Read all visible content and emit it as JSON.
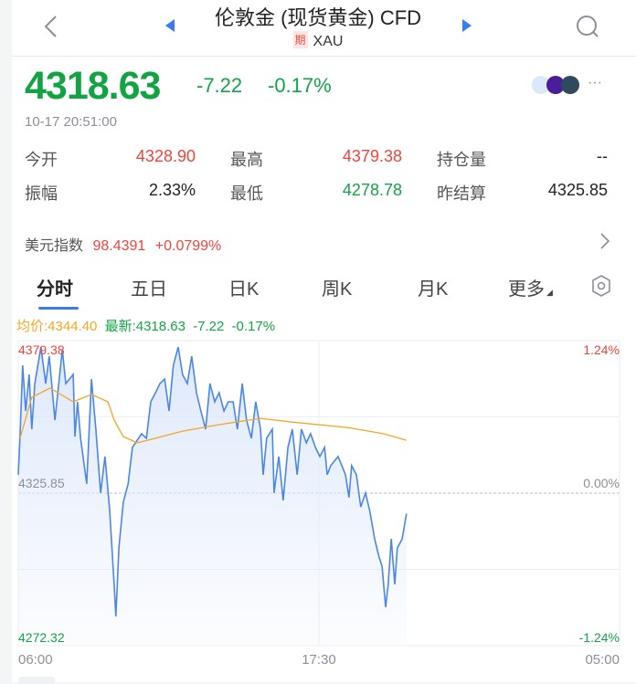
{
  "header": {
    "title": "伦敦金 (现货黄金) CFD",
    "badge": "期",
    "symbol": "XAU",
    "icons": [
      "chevron-left-icon",
      "triangle-left-icon",
      "triangle-right-icon",
      "search-icon"
    ]
  },
  "quote": {
    "price": "4318.63",
    "change": "-7.22",
    "change_pct": "-0.17%",
    "timestamp": "10-17 20:51:00",
    "more": "···"
  },
  "stats": [
    {
      "label": "今开",
      "value": "4328.90",
      "color": "red"
    },
    {
      "label": "最高",
      "value": "4379.38",
      "color": "red"
    },
    {
      "label": "持仓量",
      "value": "--",
      "color": "dark"
    },
    {
      "label": "振幅",
      "value": "2.33%",
      "color": "dark"
    },
    {
      "label": "最低",
      "value": "4278.78",
      "color": "green"
    },
    {
      "label": "昨结算",
      "value": "4325.85",
      "color": "dark"
    }
  ],
  "usd_index": {
    "label": "美元指数",
    "value": "98.4391",
    "change": "+0.0799%"
  },
  "tabs": [
    {
      "label": "分时",
      "active": true
    },
    {
      "label": "五日"
    },
    {
      "label": "日K"
    },
    {
      "label": "周K"
    },
    {
      "label": "月K"
    },
    {
      "label": "更多"
    }
  ],
  "legend": {
    "avg": "均价:4344.40",
    "latest": "最新:4318.63",
    "change": "-7.22",
    "change_pct": "-0.17%"
  },
  "colors": {
    "up": "#f0443a",
    "down": "#12a444",
    "price_line": "#4a86e8",
    "avg_line": "#f5a623",
    "accent": "#3a7bf0"
  },
  "chart_data": {
    "type": "line",
    "y_left_labels": {
      "top": "4379.38",
      "mid": "4325.85",
      "bottom": "4272.32"
    },
    "y_right_labels": {
      "top": "1.24%",
      "mid": "0.00%",
      "bottom": "-1.24%"
    },
    "x_tick_labels": [
      "06:00",
      "17:30",
      "05:00"
    ],
    "ylim": [
      4272.32,
      4379.38
    ],
    "xlim": [
      "06:00",
      "05:00"
    ],
    "reference": 4325.85,
    "series": [
      {
        "key": "price",
        "points": [
          [
            "06:00",
            4332.3
          ],
          [
            "06:04",
            4345.7
          ],
          [
            "06:10",
            4370.7
          ],
          [
            "06:17",
            4354.7
          ],
          [
            "06:25",
            4367.5
          ],
          [
            "06:31",
            4348.3
          ],
          [
            "06:38",
            4364.3
          ],
          [
            "06:52",
            4377.1
          ],
          [
            "07:03",
            4364.3
          ],
          [
            "07:11",
            4373.9
          ],
          [
            "07:24",
            4351.5
          ],
          [
            "07:41",
            4376.2
          ],
          [
            "07:49",
            4364.3
          ],
          [
            "08:06",
            4367.5
          ],
          [
            "08:10",
            4345.7
          ],
          [
            "08:16",
            4357.9
          ],
          [
            "08:23",
            4345.1
          ],
          [
            "08:37",
            4329.1
          ],
          [
            "08:48",
            4365.9
          ],
          [
            "08:58",
            4348.3
          ],
          [
            "09:09",
            4325.9
          ],
          [
            "09:19",
            4338.7
          ],
          [
            "09:30",
            4319.4
          ],
          [
            "09:40",
            4293.8
          ],
          [
            "09:44",
            4282.6
          ],
          [
            "09:51",
            4306.6
          ],
          [
            "10:01",
            4322.6
          ],
          [
            "10:12",
            4329.1
          ],
          [
            "10:22",
            4341.9
          ],
          [
            "10:43",
            4346.7
          ],
          [
            "10:54",
            4345.1
          ],
          [
            "11:04",
            4357.9
          ],
          [
            "11:15",
            4361.1
          ],
          [
            "11:25",
            4364.3
          ],
          [
            "11:36",
            4365.9
          ],
          [
            "11:46",
            4354.7
          ],
          [
            "11:56",
            4370.7
          ],
          [
            "12:07",
            4377.1
          ],
          [
            "12:17",
            4367.5
          ],
          [
            "12:28",
            4364.3
          ],
          [
            "12:38",
            4373.9
          ],
          [
            "12:49",
            4361.1
          ],
          [
            "12:59",
            4354.7
          ],
          [
            "13:10",
            4348.3
          ],
          [
            "13:20",
            4364.3
          ],
          [
            "13:31",
            4357.9
          ],
          [
            "13:41",
            4361.1
          ],
          [
            "13:52",
            4354.7
          ],
          [
            "14:02",
            4357.9
          ],
          [
            "14:13",
            4357.9
          ],
          [
            "14:23",
            4348.3
          ],
          [
            "14:34",
            4364.3
          ],
          [
            "14:44",
            4351.5
          ],
          [
            "14:55",
            4345.1
          ],
          [
            "15:05",
            4357.9
          ],
          [
            "15:16",
            4348.3
          ],
          [
            "15:22",
            4332.3
          ],
          [
            "15:30",
            4345.1
          ],
          [
            "15:43",
            4348.3
          ],
          [
            "15:47",
            4325.9
          ],
          [
            "15:58",
            4338.7
          ],
          [
            "16:08",
            4323.3
          ],
          [
            "16:19",
            4341.9
          ],
          [
            "16:29",
            4348.3
          ],
          [
            "16:40",
            4332.3
          ],
          [
            "16:50",
            4348.3
          ],
          [
            "17:01",
            4343.5
          ],
          [
            "17:11",
            4346.7
          ],
          [
            "17:22",
            4341.9
          ],
          [
            "17:32",
            4338.7
          ],
          [
            "17:43",
            4341.9
          ],
          [
            "17:49",
            4332.3
          ],
          [
            "17:57",
            4335.5
          ],
          [
            "18:14",
            4338.7
          ],
          [
            "18:31",
            4332.3
          ],
          [
            "18:39",
            4324.3
          ],
          [
            "18:45",
            4335.5
          ],
          [
            "18:56",
            4332.3
          ],
          [
            "19:06",
            4321.0
          ],
          [
            "19:17",
            4325.9
          ],
          [
            "19:27",
            4319.4
          ],
          [
            "19:38",
            4309.8
          ],
          [
            "19:48",
            4303.4
          ],
          [
            "19:55",
            4300.2
          ],
          [
            "20:03",
            4285.8
          ],
          [
            "20:09",
            4293.8
          ],
          [
            "20:16",
            4309.8
          ],
          [
            "20:24",
            4293.8
          ],
          [
            "20:30",
            4306.6
          ],
          [
            "20:41",
            4309.8
          ],
          [
            "20:51",
            4318.63
          ]
        ]
      },
      {
        "key": "average",
        "points": [
          [
            "06:04",
            4345.1
          ],
          [
            "06:31",
            4359.5
          ],
          [
            "07:13",
            4362.7
          ],
          [
            "08:06",
            4357.9
          ],
          [
            "08:48",
            4360.5
          ],
          [
            "09:26",
            4357.9
          ],
          [
            "09:40",
            4351.5
          ],
          [
            "10:01",
            4345.7
          ],
          [
            "10:33",
            4343.5
          ],
          [
            "11:15",
            4345.1
          ],
          [
            "12:17",
            4347.6
          ],
          [
            "13:41",
            4349.9
          ],
          [
            "15:16",
            4352.1
          ],
          [
            "16:29",
            4350.8
          ],
          [
            "18:35",
            4348.9
          ],
          [
            "19:59",
            4346.7
          ],
          [
            "20:51",
            4344.4
          ]
        ]
      }
    ]
  }
}
